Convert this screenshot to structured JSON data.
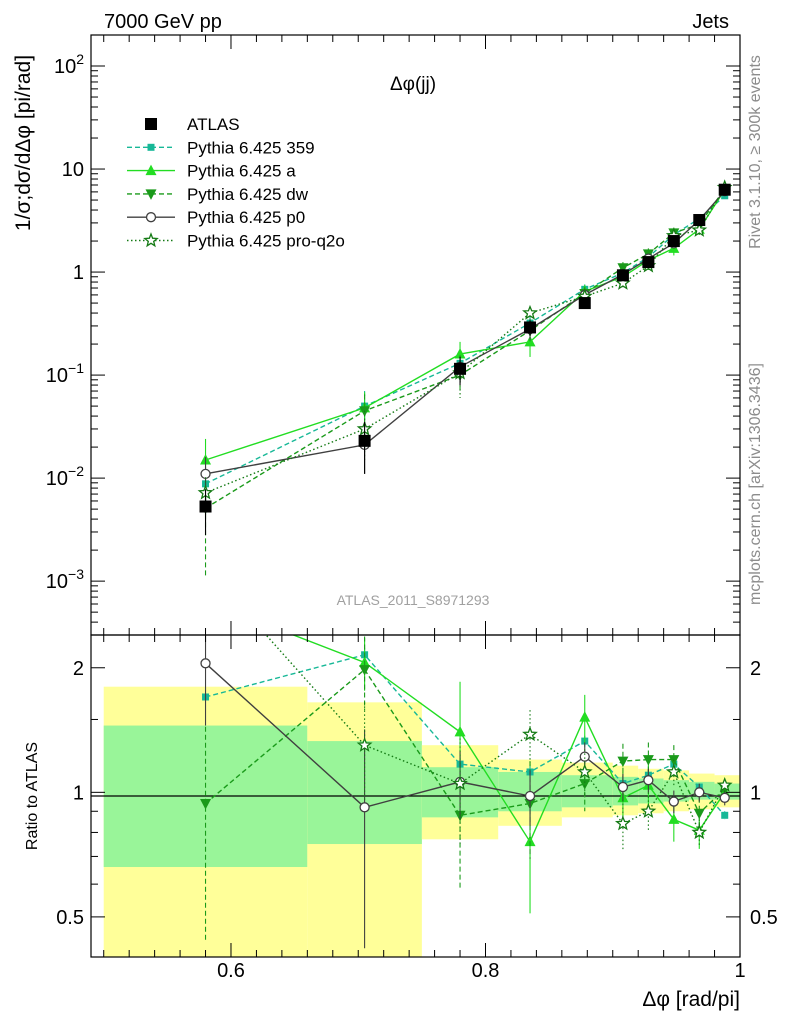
{
  "header": {
    "left": "7000 GeV pp",
    "right": "Jets"
  },
  "side_text": {
    "rivet": "Rivet 3.1.10, ≥ 300k events",
    "mcplots": "mcplots.cern.ch [arXiv:1306.3436]"
  },
  "colors": {
    "data": "#000000",
    "p359": "#17b897",
    "pa": "#22dd22",
    "pdw": "#1a9a1a",
    "pp0": "#404040",
    "pq2o": "#147a14",
    "band_outer": "#ffff99",
    "band_inner": "#99f599"
  },
  "chart_data": [
    {
      "type": "line",
      "title": "Δφ(jj)",
      "ylabel": "1/σ;dσ/dΔφ [pi/rad]",
      "xlim": [
        0.49,
        1.0
      ],
      "ylim": [
        0.0003,
        200
      ],
      "yscale": "log",
      "x": [
        0.58,
        0.705,
        0.78,
        0.835,
        0.878,
        0.908,
        0.928,
        0.948,
        0.968,
        0.988
      ],
      "yticks": [
        "10^-3",
        "10^-2",
        "10^-1",
        "1",
        "10",
        "10^2"
      ],
      "watermark": "ATLAS_2011_S8971293",
      "legend_position": "top-left",
      "series": [
        {
          "name": "ATLAS",
          "key": "data",
          "marker": "square",
          "values": [
            0.0053,
            0.023,
            0.115,
            0.29,
            0.5,
            0.93,
            1.25,
            2.0,
            3.2,
            6.3
          ],
          "errors": [
            0.0025,
            0.012,
            0.035,
            0.05,
            0.06,
            0.08,
            0.1,
            0.15,
            0.2,
            0.3
          ]
        },
        {
          "name": "Pythia 6.425 359",
          "key": "p359",
          "marker": "small-square",
          "dash": "5,3",
          "values": [
            0.0088,
            0.05,
            0.13,
            0.32,
            0.68,
            0.98,
            1.4,
            2.3,
            3.3,
            5.5
          ],
          "errors": [
            0.004,
            0.02,
            0.04,
            0.06,
            0.08,
            0.1,
            0.15,
            0.2,
            0.3,
            0.4
          ]
        },
        {
          "name": "Pythia 6.425 a",
          "key": "pa",
          "marker": "triangle-up",
          "dash": "",
          "values": [
            0.015,
            0.048,
            0.16,
            0.21,
            0.65,
            0.9,
            1.3,
            1.7,
            2.6,
            6.3
          ],
          "errors": [
            0.009,
            0.02,
            0.05,
            0.06,
            0.1,
            0.15,
            0.2,
            0.25,
            0.3,
            0.45
          ]
        },
        {
          "name": "Pythia 6.425 dw",
          "key": "pdw",
          "marker": "triangle-down",
          "dash": "5,3",
          "values": [
            0.0051,
            0.045,
            0.1,
            0.27,
            0.62,
            1.1,
            1.5,
            2.4,
            2.9,
            6.4
          ],
          "errors": [
            0.004,
            0.02,
            0.035,
            0.07,
            0.1,
            0.15,
            0.2,
            0.3,
            0.35,
            0.5
          ]
        },
        {
          "name": "Pythia 6.425 p0",
          "key": "pp0",
          "marker": "circle-open",
          "dash": "",
          "values": [
            0.011,
            0.021,
            0.12,
            0.28,
            0.6,
            0.95,
            1.35,
            1.9,
            3.2,
            6.1
          ],
          "errors": [
            0.005,
            0.01,
            0.035,
            0.06,
            0.09,
            0.12,
            0.15,
            0.2,
            0.3,
            0.4
          ]
        },
        {
          "name": "Pythia 6.425 pro-q2o",
          "key": "pq2o",
          "marker": "star-open",
          "dash": "1.5,2.5",
          "values": [
            0.0072,
            0.03,
            0.105,
            0.4,
            0.58,
            0.78,
            1.15,
            2.25,
            2.55,
            6.6
          ],
          "errors": [
            0.003,
            0.015,
            0.045,
            0.06,
            0.08,
            0.1,
            0.15,
            0.25,
            0.3,
            0.45
          ]
        }
      ]
    },
    {
      "type": "line",
      "ylabel": "Ratio to ATLAS",
      "xlabel": "Δφ [rad/pi]",
      "xlim": [
        0.49,
        1.0
      ],
      "ylim": [
        0.4,
        2.4
      ],
      "yscale": "log",
      "xticks": [
        "0.6",
        "0.8",
        "1"
      ],
      "yticks": [
        "0.5",
        "1",
        "2"
      ],
      "bands": [
        {
          "x0": 0.5,
          "x1": 0.66,
          "outer": [
            0.38,
            1.8
          ],
          "inner": [
            0.66,
            1.45
          ]
        },
        {
          "x0": 0.66,
          "x1": 0.75,
          "outer": [
            0.38,
            1.65
          ],
          "inner": [
            0.75,
            1.33
          ]
        },
        {
          "x0": 0.75,
          "x1": 0.81,
          "outer": [
            0.77,
            1.3
          ],
          "inner": [
            0.87,
            1.15
          ]
        },
        {
          "x0": 0.81,
          "x1": 0.86,
          "outer": [
            0.83,
            1.2
          ],
          "inner": [
            0.9,
            1.12
          ]
        },
        {
          "x0": 0.86,
          "x1": 0.9,
          "outer": [
            0.87,
            1.18
          ],
          "inner": [
            0.92,
            1.1
          ]
        },
        {
          "x0": 0.9,
          "x1": 0.92,
          "outer": [
            0.88,
            1.16
          ],
          "inner": [
            0.93,
            1.09
          ]
        },
        {
          "x0": 0.92,
          "x1": 0.94,
          "outer": [
            0.89,
            1.14
          ],
          "inner": [
            0.94,
            1.08
          ]
        },
        {
          "x0": 0.94,
          "x1": 0.96,
          "outer": [
            0.9,
            1.13
          ],
          "inner": [
            0.95,
            1.07
          ]
        },
        {
          "x0": 0.96,
          "x1": 0.98,
          "outer": [
            0.91,
            1.11
          ],
          "inner": [
            0.96,
            1.06
          ]
        },
        {
          "x0": 0.98,
          "x1": 1.0,
          "outer": [
            0.92,
            1.1
          ],
          "inner": [
            0.96,
            1.05
          ]
        }
      ],
      "series": [
        {
          "name": "Pythia 6.425 359",
          "key": "p359",
          "marker": "small-square",
          "dash": "5,3",
          "values": [
            1.7,
            2.15,
            1.17,
            1.12,
            1.33,
            1.05,
            1.1,
            1.17,
            1.03,
            0.88
          ],
          "errors": [
            0,
            0.08,
            0.06,
            0.05,
            0.04,
            0.03,
            0.03,
            0.02,
            0.02,
            0.02
          ]
        },
        {
          "name": "Pythia 6.425 a",
          "key": "pa",
          "marker": "triangle-up",
          "dash": "",
          "values": [
            2.9,
            2.06,
            1.4,
            0.76,
            1.52,
            0.97,
            1.04,
            0.86,
            0.81,
            1.0
          ],
          "errors": [
            0,
            0.3,
            0.45,
            0.25,
            0.2,
            0.15,
            0.15,
            0.1,
            0.08,
            0.05
          ]
        },
        {
          "name": "Pythia 6.425 dw",
          "key": "pdw",
          "marker": "triangle-down",
          "dash": "5,3",
          "values": [
            0.94,
            1.98,
            0.88,
            0.94,
            1.05,
            1.19,
            1.2,
            1.2,
            0.89,
            1.02
          ],
          "errors": [
            0.5,
            0.4,
            0.3,
            0.25,
            0.15,
            0.12,
            0.12,
            0.1,
            0.08,
            0.05
          ]
        },
        {
          "name": "Pythia 6.425 p0",
          "key": "pp0",
          "marker": "circle-open",
          "dash": "",
          "values": [
            2.05,
            0.92,
            1.06,
            0.98,
            1.22,
            1.03,
            1.07,
            0.95,
            1.0,
            0.97
          ],
          "errors": [
            0.6,
            0.5,
            0.2,
            0.15,
            0.1,
            0.08,
            0.07,
            0.06,
            0.05,
            0.04
          ]
        },
        {
          "name": "Pythia 6.425 pro-q2o",
          "key": "pq2o",
          "marker": "star-open",
          "dash": "1.5,2.5",
          "values": [
            3.5,
            1.3,
            1.05,
            1.38,
            1.12,
            0.84,
            0.9,
            1.12,
            0.8,
            1.04
          ],
          "errors": [
            0,
            0.35,
            0.3,
            0.2,
            0.15,
            0.12,
            0.1,
            0.08,
            0.06,
            0.04
          ]
        }
      ]
    }
  ]
}
